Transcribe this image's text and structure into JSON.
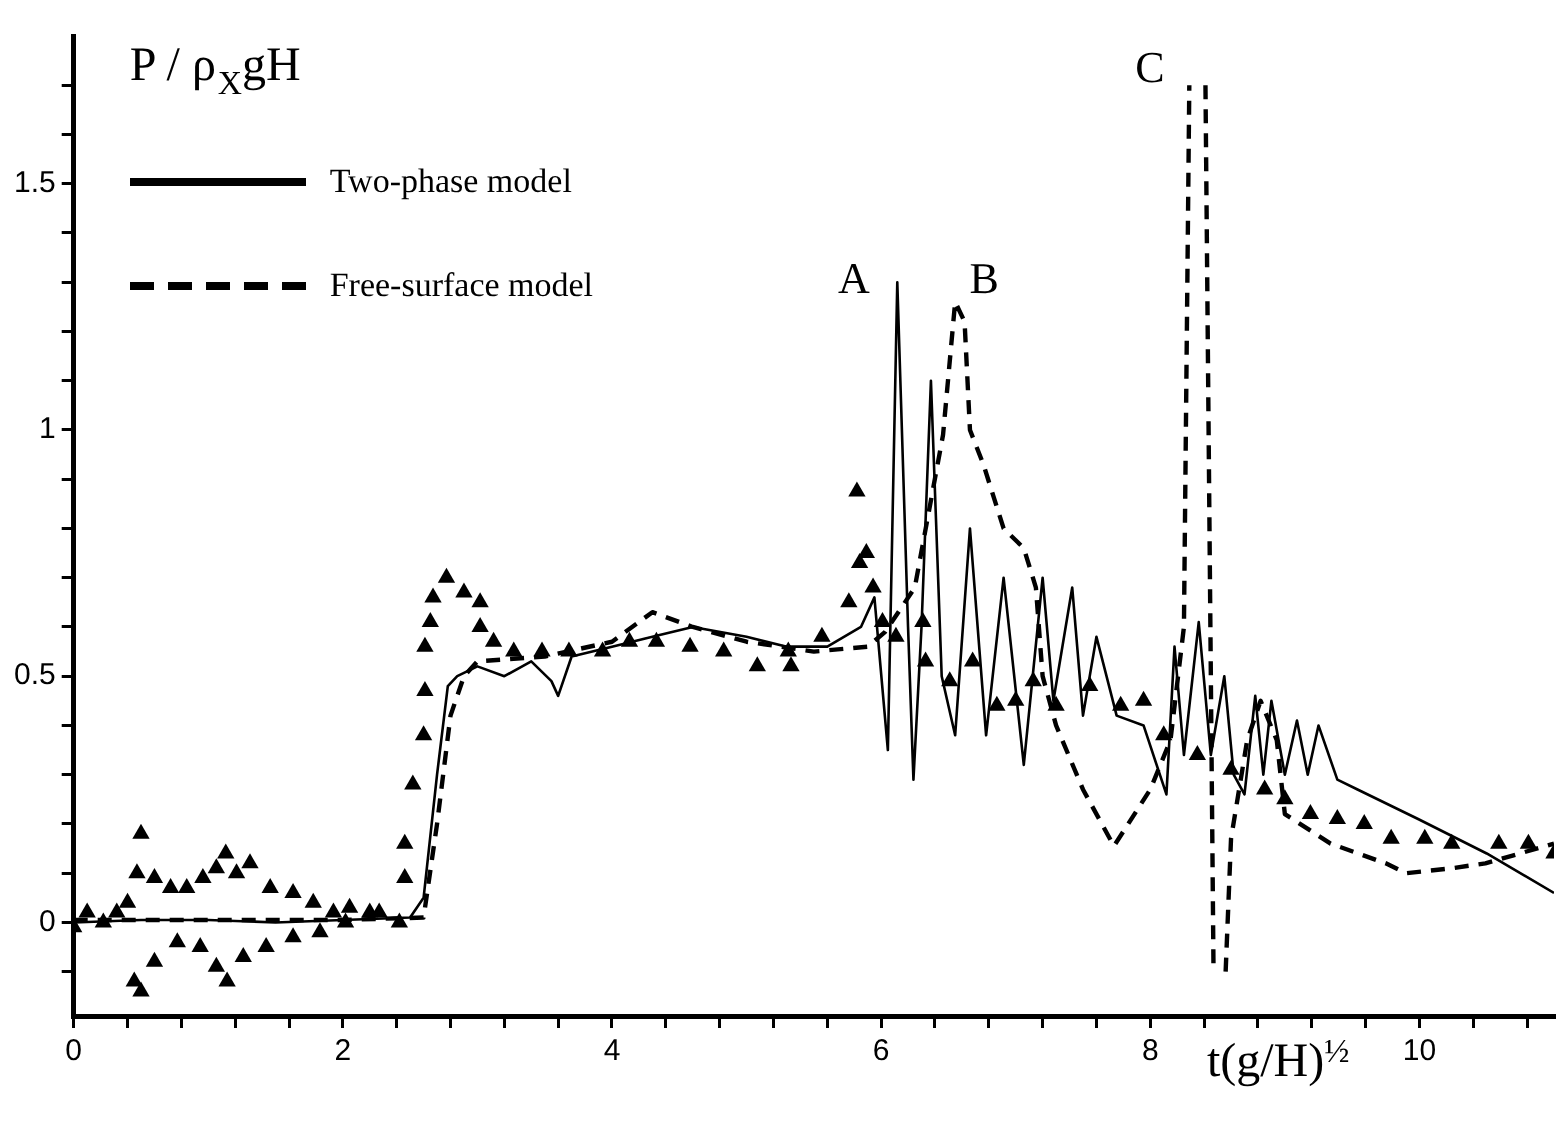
{
  "chart_data": {
    "type": "line",
    "ylabel": "P / ρ$_{X}$gH",
    "xlabel": "t(g/H)$^{½}$",
    "xlim": [
      0,
      11
    ],
    "ylim": [
      -0.19,
      1.8
    ],
    "xticks": [
      0,
      {
        "value": 0.4,
        "label": null
      },
      {
        "value": 0.8,
        "label": null
      },
      {
        "value": 1.2,
        "label": null
      },
      {
        "value": 1.6,
        "label": null
      },
      2,
      {
        "value": 2.4,
        "label": null
      },
      {
        "value": 2.8,
        "label": null
      },
      {
        "value": 3.2,
        "label": null
      },
      {
        "value": 3.6,
        "label": null
      },
      4,
      {
        "value": 4.4,
        "label": null
      },
      {
        "value": 4.8,
        "label": null
      },
      {
        "value": 5.2,
        "label": null
      },
      {
        "value": 5.6,
        "label": null
      },
      6,
      {
        "value": 6.4,
        "label": null
      },
      {
        "value": 6.8,
        "label": null
      },
      {
        "value": 7.2,
        "label": null
      },
      {
        "value": 7.6,
        "label": null
      },
      8,
      {
        "value": 8.4,
        "label": null
      },
      {
        "value": 8.8,
        "label": null
      },
      {
        "value": 9.2,
        "label": null
      },
      {
        "value": 9.6,
        "label": null
      },
      10,
      {
        "value": 10.4,
        "label": null
      },
      {
        "value": 10.8,
        "label": null
      }
    ],
    "yticks": [
      {
        "value": -0.1,
        "label": null
      },
      0,
      {
        "value": 0.1,
        "label": null
      },
      {
        "value": 0.2,
        "label": null
      },
      {
        "value": 0.3,
        "label": null
      },
      {
        "value": 0.4,
        "label": null
      },
      0.5,
      {
        "value": 0.6,
        "label": null
      },
      {
        "value": 0.7,
        "label": null
      },
      {
        "value": 0.8,
        "label": null
      },
      {
        "value": 0.9,
        "label": null
      },
      1,
      {
        "value": 1.1,
        "label": null
      },
      {
        "value": 1.2,
        "label": null
      },
      {
        "value": 1.3,
        "label": null
      },
      {
        "value": 1.4,
        "label": null
      },
      1.5,
      {
        "value": 1.6,
        "label": null
      },
      {
        "value": 1.7,
        "label": null
      }
    ],
    "grid": false,
    "legend": "top left",
    "annotations": [
      "A",
      "B",
      "C"
    ],
    "series": [
      {
        "name": "Two-phase model",
        "color": "#000000",
        "line_style": "solid",
        "marker": "none",
        "x": [
          0,
          0.5,
          1,
          1.5,
          2,
          2.5,
          2.6,
          2.7,
          2.78,
          2.85,
          3.0,
          3.2,
          3.4,
          3.55,
          3.6,
          3.7,
          4.0,
          4.3,
          4.6,
          5.0,
          5.3,
          5.6,
          5.85,
          5.95,
          6.05,
          6.12,
          6.2,
          6.24,
          6.3,
          6.37,
          6.45,
          6.55,
          6.66,
          6.78,
          6.91,
          7.06,
          7.2,
          7.28,
          7.42,
          7.5,
          7.6,
          7.75,
          7.95,
          8.12,
          8.18,
          8.25,
          8.36,
          8.45,
          8.55,
          8.62,
          8.7,
          8.78,
          8.84,
          8.9,
          9.0,
          9.09,
          9.17,
          9.25,
          9.39,
          9.54,
          9.99,
          10.5,
          11
        ],
        "values": [
          0,
          0.005,
          0.005,
          0,
          0.005,
          0.01,
          0.05,
          0.3,
          0.48,
          0.5,
          0.52,
          0.5,
          0.53,
          0.49,
          0.46,
          0.54,
          0.56,
          0.58,
          0.6,
          0.58,
          0.56,
          0.56,
          0.6,
          0.66,
          0.35,
          1.3,
          0.6,
          0.29,
          0.6,
          1.1,
          0.5,
          0.38,
          0.8,
          0.38,
          0.7,
          0.32,
          0.7,
          0.45,
          0.68,
          0.42,
          0.58,
          0.42,
          0.4,
          0.26,
          0.56,
          0.34,
          0.61,
          0.34,
          0.5,
          0.3,
          0.26,
          0.46,
          0.3,
          0.45,
          0.3,
          0.41,
          0.3,
          0.4,
          0.29,
          0.27,
          0.21,
          0.14,
          0.06
        ]
      },
      {
        "name": "Free-surface model",
        "color": "#000000",
        "line_style": "dashed",
        "marker": "none",
        "x": [
          0,
          1,
          2,
          2.6,
          2.7,
          2.8,
          2.9,
          3.0,
          3.5,
          4.0,
          4.3,
          4.6,
          5.0,
          5.5,
          5.9,
          6.03,
          6.25,
          6.46,
          6.55,
          6.62,
          6.66,
          6.76,
          6.91,
          7.06,
          7.15,
          7.2,
          7.3,
          7.5,
          7.73,
          8.0,
          8.15,
          8.25,
          8.29,
          8.35,
          8.41,
          8.47,
          8.52,
          8.56,
          8.6,
          8.72,
          8.82,
          8.94,
          9.0,
          9.34,
          9.75,
          9.9,
          10.24,
          10.49,
          11
        ],
        "values": [
          0.005,
          0.005,
          0.005,
          0.01,
          0.2,
          0.42,
          0.5,
          0.53,
          0.54,
          0.57,
          0.63,
          0.6,
          0.57,
          0.55,
          0.56,
          0.59,
          0.68,
          0.99,
          1.26,
          1.22,
          1.0,
          0.93,
          0.8,
          0.76,
          0.68,
          0.5,
          0.4,
          0.27,
          0.155,
          0.27,
          0.37,
          0.6,
          1.7,
          null,
          1.7,
          -0.1,
          null,
          -0.1,
          0.17,
          0.37,
          0.45,
          0.37,
          0.22,
          0.16,
          0.12,
          0.1,
          0.11,
          0.12,
          0.16
        ]
      },
      {
        "type": "scatter",
        "color": "#000000",
        "marker": "triangle",
        "x": [
          0,
          0.1,
          0.22,
          0.32,
          0.4,
          0.47,
          0.5,
          0.6,
          0.72,
          0.84,
          0.96,
          1.06,
          1.13,
          1.21,
          1.31,
          1.46,
          1.63,
          1.78,
          1.93,
          2.05,
          2.2,
          2.27,
          2.42,
          2.46,
          2.46,
          2.52,
          2.6,
          2.61,
          2.61,
          2.65,
          2.67,
          2.77,
          2.9,
          3.02,
          3.02,
          3.12,
          3.27,
          3.48,
          3.68,
          3.93,
          4.13,
          4.33,
          4.58,
          4.83,
          5.08,
          5.33,
          0.45,
          0.5,
          0.6,
          0.77,
          0.94,
          1.06,
          1.14,
          1.26,
          1.43,
          1.63,
          1.83,
          2.02,
          5.31,
          5.56,
          5.76,
          5.82,
          5.84,
          5.89,
          5.94,
          6.01,
          6.11,
          6.31,
          6.33,
          6.51,
          6.68,
          6.86,
          7.0,
          7.13,
          7.3,
          7.55,
          7.78,
          7.95,
          8.1,
          8.35,
          8.6,
          8.85,
          9.0,
          9.19,
          9.39,
          9.59,
          9.79,
          10.04,
          10.24,
          10.59,
          10.81,
          11.0
        ],
        "values": [
          -0.01,
          0.02,
          0,
          0.02,
          0.04,
          0.1,
          0.18,
          0.09,
          0.07,
          0.07,
          0.09,
          0.11,
          0.14,
          0.1,
          0.12,
          0.07,
          0.06,
          0.04,
          0.02,
          0.03,
          0.02,
          0.02,
          0,
          0.09,
          0.16,
          0.28,
          0.38,
          0.47,
          0.56,
          0.61,
          0.66,
          0.7,
          0.67,
          0.65,
          0.6,
          0.57,
          0.55,
          0.55,
          0.55,
          0.55,
          0.57,
          0.57,
          0.56,
          0.55,
          0.52,
          0.52,
          -0.12,
          -0.14,
          -0.08,
          -0.04,
          -0.05,
          -0.09,
          -0.12,
          -0.07,
          -0.05,
          -0.03,
          -0.02,
          0,
          0.55,
          0.58,
          0.65,
          0.875,
          0.73,
          0.75,
          0.68,
          0.61,
          0.58,
          0.61,
          0.53,
          0.49,
          0.53,
          0.44,
          0.45,
          0.49,
          0.44,
          0.48,
          0.44,
          0.45,
          0.38,
          0.34,
          0.31,
          0.27,
          0.25,
          0.22,
          0.21,
          0.2,
          0.17,
          0.17,
          0.16,
          0.16,
          0.16,
          0.14
        ]
      }
    ]
  }
}
